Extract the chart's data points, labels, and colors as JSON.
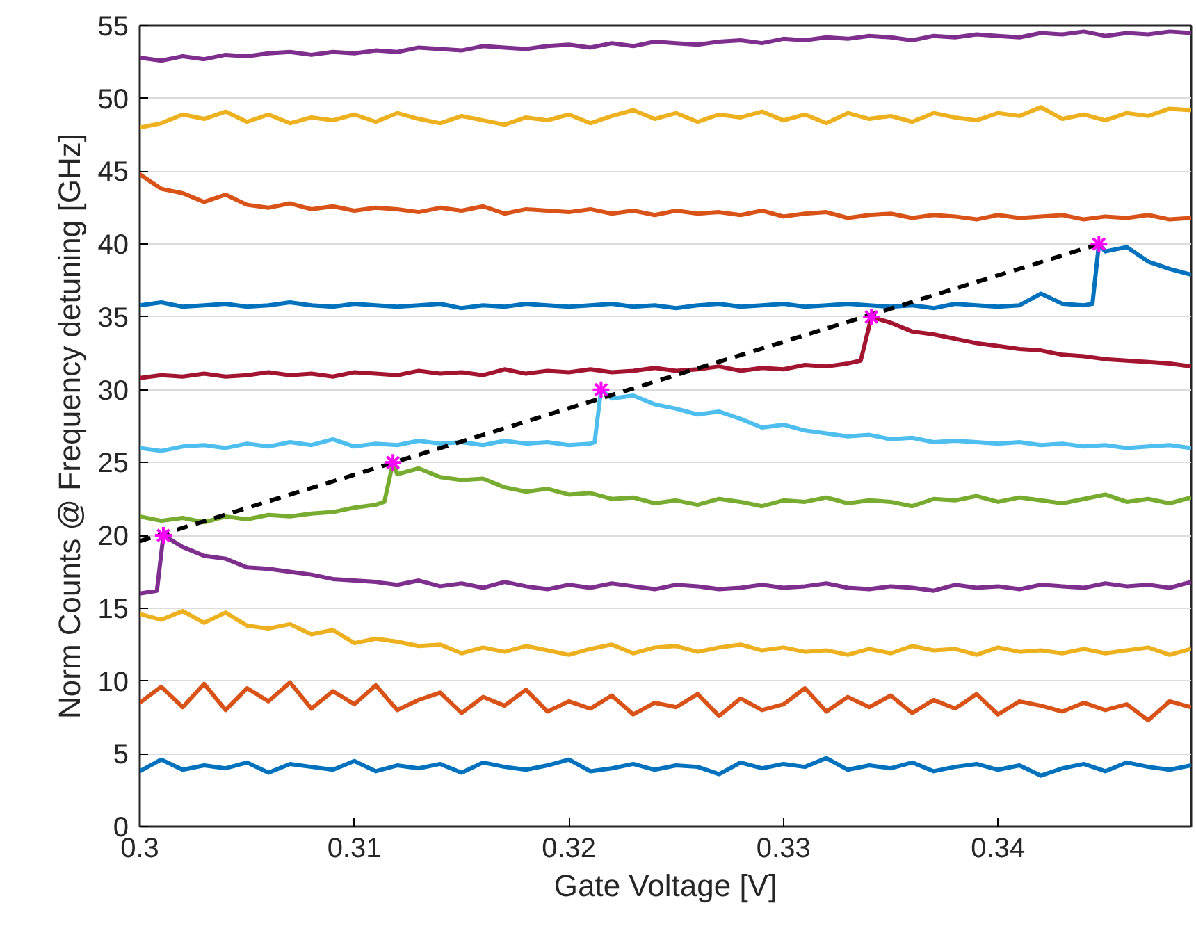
{
  "chart_data": {
    "type": "line",
    "xlabel": "Gate Voltage [V]",
    "ylabel": "Norm Counts @ Frequency detuning [GHz]",
    "xlim": [
      0.3,
      0.349
    ],
    "xticks": [
      0.3,
      0.31,
      0.32,
      0.33,
      0.34
    ],
    "ylim": [
      0,
      55
    ],
    "yticks": [
      0,
      5,
      10,
      15,
      20,
      25,
      30,
      35,
      40,
      45,
      50,
      55
    ],
    "grid": "y",
    "line_style": "solid",
    "x": [
      0.3,
      0.301,
      0.302,
      0.303,
      0.304,
      0.305,
      0.306,
      0.307,
      0.308,
      0.309,
      0.31,
      0.311,
      0.312,
      0.313,
      0.314,
      0.315,
      0.316,
      0.317,
      0.318,
      0.319,
      0.32,
      0.321,
      0.322,
      0.323,
      0.324,
      0.325,
      0.326,
      0.327,
      0.328,
      0.329,
      0.33,
      0.331,
      0.332,
      0.333,
      0.334,
      0.335,
      0.336,
      0.337,
      0.338,
      0.339,
      0.34,
      0.341,
      0.342,
      0.343,
      0.344,
      0.345,
      0.346,
      0.347,
      0.348,
      0.349
    ],
    "series": [
      {
        "color": "#0072bd",
        "values": [
          3.8,
          4.6,
          3.9,
          4.2,
          4.0,
          4.4,
          3.7,
          4.3,
          4.1,
          3.9,
          4.5,
          3.8,
          4.2,
          4.0,
          4.3,
          3.7,
          4.4,
          4.1,
          3.9,
          4.2,
          4.6,
          3.8,
          4.0,
          4.3,
          3.9,
          4.2,
          4.1,
          3.6,
          4.4,
          4.0,
          4.3,
          4.1,
          4.7,
          3.9,
          4.2,
          4.0,
          4.4,
          3.8,
          4.1,
          4.3,
          3.9,
          4.2,
          3.5,
          4.0,
          4.3,
          3.8,
          4.4,
          4.1,
          3.9,
          4.2
        ]
      },
      {
        "color": "#d95319",
        "values": [
          8.5,
          9.6,
          8.2,
          9.8,
          8.0,
          9.5,
          8.6,
          9.9,
          8.1,
          9.3,
          8.4,
          9.7,
          8.0,
          8.7,
          9.2,
          7.8,
          8.9,
          8.3,
          9.4,
          7.9,
          8.6,
          8.1,
          9.0,
          7.7,
          8.5,
          8.2,
          9.1,
          7.6,
          8.8,
          8.0,
          8.4,
          9.5,
          7.9,
          8.9,
          8.2,
          9.0,
          7.8,
          8.7,
          8.1,
          9.1,
          7.7,
          8.6,
          8.3,
          7.9,
          8.5,
          8.0,
          8.4,
          7.3,
          8.6,
          8.2
        ]
      },
      {
        "color": "#edb120",
        "values": [
          14.6,
          14.2,
          14.8,
          14.0,
          14.7,
          13.8,
          13.6,
          13.9,
          13.2,
          13.5,
          12.6,
          12.9,
          12.7,
          12.4,
          12.5,
          11.9,
          12.3,
          12.0,
          12.4,
          12.1,
          11.8,
          12.2,
          12.5,
          11.9,
          12.3,
          12.4,
          12.0,
          12.3,
          12.5,
          12.1,
          12.3,
          12.0,
          12.1,
          11.8,
          12.2,
          11.9,
          12.4,
          12.1,
          12.2,
          11.8,
          12.3,
          12.0,
          12.1,
          11.9,
          12.2,
          11.9,
          12.1,
          12.3,
          11.8,
          12.2
        ]
      },
      {
        "color": "#7e2f8e",
        "x": [
          0.3,
          0.3008,
          0.3011,
          0.302,
          0.303,
          0.304,
          0.305,
          0.306,
          0.307,
          0.308,
          0.309,
          0.31,
          0.311,
          0.312,
          0.313,
          0.314,
          0.315,
          0.316,
          0.317,
          0.318,
          0.319,
          0.32,
          0.321,
          0.322,
          0.323,
          0.324,
          0.325,
          0.326,
          0.327,
          0.328,
          0.329,
          0.33,
          0.331,
          0.332,
          0.333,
          0.334,
          0.335,
          0.336,
          0.337,
          0.338,
          0.339,
          0.34,
          0.341,
          0.342,
          0.343,
          0.344,
          0.345,
          0.346,
          0.347,
          0.348,
          0.349
        ],
        "values": [
          16.0,
          16.2,
          20.0,
          19.2,
          18.6,
          18.4,
          17.8,
          17.7,
          17.5,
          17.3,
          17.0,
          16.9,
          16.8,
          16.6,
          16.9,
          16.5,
          16.7,
          16.4,
          16.8,
          16.5,
          16.3,
          16.6,
          16.4,
          16.7,
          16.5,
          16.3,
          16.6,
          16.5,
          16.3,
          16.4,
          16.6,
          16.4,
          16.5,
          16.7,
          16.4,
          16.3,
          16.5,
          16.4,
          16.2,
          16.6,
          16.4,
          16.5,
          16.3,
          16.6,
          16.5,
          16.4,
          16.7,
          16.5,
          16.6,
          16.4,
          16.8
        ]
      },
      {
        "color": "#77ac30",
        "x": [
          0.3,
          0.301,
          0.302,
          0.303,
          0.304,
          0.305,
          0.306,
          0.307,
          0.308,
          0.309,
          0.31,
          0.311,
          0.3114,
          0.3118,
          0.312,
          0.313,
          0.314,
          0.315,
          0.316,
          0.317,
          0.318,
          0.319,
          0.32,
          0.321,
          0.322,
          0.323,
          0.324,
          0.325,
          0.326,
          0.327,
          0.328,
          0.329,
          0.33,
          0.331,
          0.332,
          0.333,
          0.334,
          0.335,
          0.336,
          0.337,
          0.338,
          0.339,
          0.34,
          0.341,
          0.342,
          0.343,
          0.344,
          0.345,
          0.346,
          0.347,
          0.348,
          0.349
        ],
        "values": [
          21.3,
          21.0,
          21.2,
          20.9,
          21.3,
          21.1,
          21.4,
          21.3,
          21.5,
          21.6,
          21.9,
          22.1,
          22.3,
          25.0,
          24.2,
          24.6,
          24.0,
          23.8,
          23.9,
          23.3,
          23.0,
          23.2,
          22.8,
          22.9,
          22.5,
          22.6,
          22.2,
          22.4,
          22.1,
          22.5,
          22.3,
          22.0,
          22.4,
          22.3,
          22.6,
          22.2,
          22.4,
          22.3,
          22.0,
          22.5,
          22.4,
          22.7,
          22.3,
          22.6,
          22.4,
          22.2,
          22.5,
          22.8,
          22.3,
          22.5,
          22.2,
          22.6
        ]
      },
      {
        "color": "#4dbeee",
        "x": [
          0.3,
          0.301,
          0.302,
          0.303,
          0.304,
          0.305,
          0.306,
          0.307,
          0.308,
          0.309,
          0.31,
          0.311,
          0.312,
          0.313,
          0.314,
          0.315,
          0.316,
          0.317,
          0.318,
          0.319,
          0.32,
          0.321,
          0.3212,
          0.3215,
          0.322,
          0.323,
          0.324,
          0.325,
          0.326,
          0.327,
          0.328,
          0.329,
          0.33,
          0.331,
          0.332,
          0.333,
          0.334,
          0.335,
          0.336,
          0.337,
          0.338,
          0.339,
          0.34,
          0.341,
          0.342,
          0.343,
          0.344,
          0.345,
          0.346,
          0.347,
          0.348,
          0.349
        ],
        "values": [
          26.0,
          25.8,
          26.1,
          26.2,
          26.0,
          26.3,
          26.1,
          26.4,
          26.2,
          26.6,
          26.1,
          26.3,
          26.2,
          26.5,
          26.3,
          26.4,
          26.2,
          26.5,
          26.3,
          26.4,
          26.2,
          26.3,
          26.4,
          30.0,
          29.4,
          29.6,
          29.0,
          28.7,
          28.3,
          28.5,
          28.0,
          27.4,
          27.6,
          27.2,
          27.0,
          26.8,
          26.9,
          26.6,
          26.7,
          26.4,
          26.5,
          26.4,
          26.3,
          26.4,
          26.2,
          26.3,
          26.1,
          26.2,
          26.0,
          26.1,
          26.2,
          26.0
        ]
      },
      {
        "color": "#a2142f",
        "x": [
          0.3,
          0.301,
          0.302,
          0.303,
          0.304,
          0.305,
          0.306,
          0.307,
          0.308,
          0.309,
          0.31,
          0.311,
          0.312,
          0.313,
          0.314,
          0.315,
          0.316,
          0.317,
          0.318,
          0.319,
          0.32,
          0.321,
          0.322,
          0.323,
          0.324,
          0.325,
          0.326,
          0.327,
          0.328,
          0.329,
          0.33,
          0.331,
          0.332,
          0.333,
          0.3336,
          0.3341,
          0.335,
          0.336,
          0.337,
          0.338,
          0.339,
          0.34,
          0.341,
          0.342,
          0.343,
          0.344,
          0.345,
          0.346,
          0.347,
          0.348,
          0.349
        ],
        "values": [
          30.8,
          31.0,
          30.9,
          31.1,
          30.9,
          31.0,
          31.2,
          31.0,
          31.1,
          30.9,
          31.2,
          31.1,
          31.0,
          31.3,
          31.1,
          31.2,
          31.0,
          31.4,
          31.1,
          31.3,
          31.2,
          31.4,
          31.2,
          31.3,
          31.5,
          31.3,
          31.4,
          31.6,
          31.3,
          31.5,
          31.4,
          31.7,
          31.6,
          31.8,
          32.0,
          35.0,
          34.6,
          34.0,
          33.8,
          33.5,
          33.2,
          33.0,
          32.8,
          32.7,
          32.4,
          32.3,
          32.1,
          32.0,
          31.9,
          31.8,
          31.6
        ]
      },
      {
        "color": "#0072bd",
        "x": [
          0.3,
          0.301,
          0.302,
          0.303,
          0.304,
          0.305,
          0.306,
          0.307,
          0.308,
          0.309,
          0.31,
          0.311,
          0.312,
          0.313,
          0.314,
          0.315,
          0.316,
          0.317,
          0.318,
          0.319,
          0.32,
          0.321,
          0.322,
          0.323,
          0.324,
          0.325,
          0.326,
          0.327,
          0.328,
          0.329,
          0.33,
          0.331,
          0.332,
          0.333,
          0.334,
          0.335,
          0.336,
          0.337,
          0.338,
          0.339,
          0.34,
          0.341,
          0.342,
          0.343,
          0.344,
          0.3444,
          0.3447,
          0.345,
          0.346,
          0.347,
          0.348,
          0.349
        ],
        "values": [
          35.8,
          36.0,
          35.7,
          35.8,
          35.9,
          35.7,
          35.8,
          36.0,
          35.8,
          35.7,
          35.9,
          35.8,
          35.7,
          35.8,
          35.9,
          35.6,
          35.8,
          35.7,
          35.9,
          35.8,
          35.7,
          35.8,
          35.9,
          35.7,
          35.8,
          35.6,
          35.8,
          35.9,
          35.7,
          35.8,
          35.9,
          35.7,
          35.8,
          35.9,
          35.8,
          35.7,
          35.8,
          35.6,
          35.9,
          35.8,
          35.7,
          35.8,
          36.6,
          35.9,
          35.8,
          35.9,
          40.0,
          39.5,
          39.8,
          38.8,
          38.3,
          37.9
        ]
      },
      {
        "color": "#d95319",
        "values": [
          44.8,
          43.8,
          43.5,
          42.9,
          43.4,
          42.7,
          42.5,
          42.8,
          42.4,
          42.6,
          42.3,
          42.5,
          42.4,
          42.2,
          42.5,
          42.3,
          42.6,
          42.1,
          42.4,
          42.3,
          42.2,
          42.4,
          42.1,
          42.3,
          42.0,
          42.3,
          42.1,
          42.2,
          42.0,
          42.3,
          41.9,
          42.1,
          42.2,
          41.8,
          42.0,
          42.1,
          41.8,
          42.0,
          41.9,
          41.7,
          42.0,
          41.8,
          41.9,
          42.0,
          41.7,
          41.9,
          41.8,
          42.0,
          41.7,
          41.8
        ]
      },
      {
        "color": "#edb120",
        "values": [
          48.0,
          48.3,
          48.9,
          48.6,
          49.1,
          48.4,
          48.9,
          48.3,
          48.7,
          48.5,
          48.9,
          48.4,
          49.0,
          48.6,
          48.3,
          48.8,
          48.5,
          48.2,
          48.7,
          48.5,
          48.9,
          48.3,
          48.8,
          49.2,
          48.6,
          49.0,
          48.4,
          48.9,
          48.7,
          49.1,
          48.5,
          48.9,
          48.3,
          49.0,
          48.6,
          48.8,
          48.4,
          49.0,
          48.7,
          48.5,
          49.0,
          48.8,
          49.4,
          48.6,
          48.9,
          48.5,
          49.0,
          48.8,
          49.3,
          49.2
        ]
      },
      {
        "color": "#7e2f8e",
        "values": [
          52.8,
          52.6,
          52.9,
          52.7,
          53.0,
          52.9,
          53.1,
          53.2,
          53.0,
          53.2,
          53.1,
          53.3,
          53.2,
          53.5,
          53.4,
          53.3,
          53.6,
          53.5,
          53.4,
          53.6,
          53.7,
          53.5,
          53.8,
          53.6,
          53.9,
          53.8,
          53.7,
          53.9,
          54.0,
          53.8,
          54.1,
          54.0,
          54.2,
          54.1,
          54.3,
          54.2,
          54.0,
          54.3,
          54.2,
          54.4,
          54.3,
          54.2,
          54.5,
          54.4,
          54.6,
          54.3,
          54.5,
          54.4,
          54.6,
          54.5
        ]
      },
      {
        "type": "line",
        "color": "#000000",
        "line_style": "dashed",
        "x": [
          0.3,
          0.3447
        ],
        "values": [
          19.6,
          40.0
        ]
      },
      {
        "type": "scatter",
        "color": "#ff00ff",
        "marker": "cross",
        "x": [
          0.3011,
          0.3118,
          0.3215,
          0.3341,
          0.3447
        ],
        "values": [
          20,
          25,
          30,
          35,
          40
        ]
      }
    ]
  }
}
